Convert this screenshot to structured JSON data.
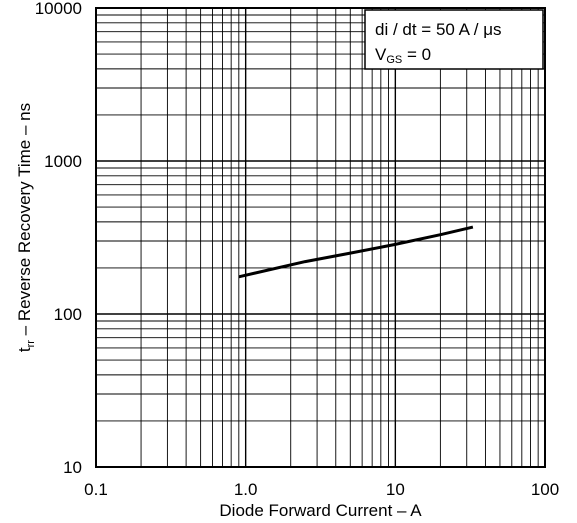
{
  "chart_data": {
    "type": "line",
    "xscale": "log",
    "yscale": "log",
    "xlim": [
      0.1,
      100
    ],
    "ylim": [
      10,
      10000
    ],
    "xlabel": "Diode Forward Current – A",
    "ylabel_sub_base": "t",
    "ylabel_sub": "rr",
    "ylabel_rest": " – Reverse Recovery Time – ns",
    "x_ticks": [
      "0.1",
      "1.0",
      "10",
      "100"
    ],
    "y_ticks": [
      "10",
      "100",
      "1000",
      "10000"
    ],
    "grid": true,
    "annotation": {
      "line1": "di / dt = 50  A / μs",
      "line2_base": "V",
      "line2_sub": "GS",
      "line2_rest": " = 0"
    },
    "series": [
      {
        "x": [
          0.9,
          2.5,
          5,
          10,
          20,
          33
        ],
        "y": [
          175,
          220,
          250,
          285,
          330,
          370
        ]
      }
    ]
  }
}
